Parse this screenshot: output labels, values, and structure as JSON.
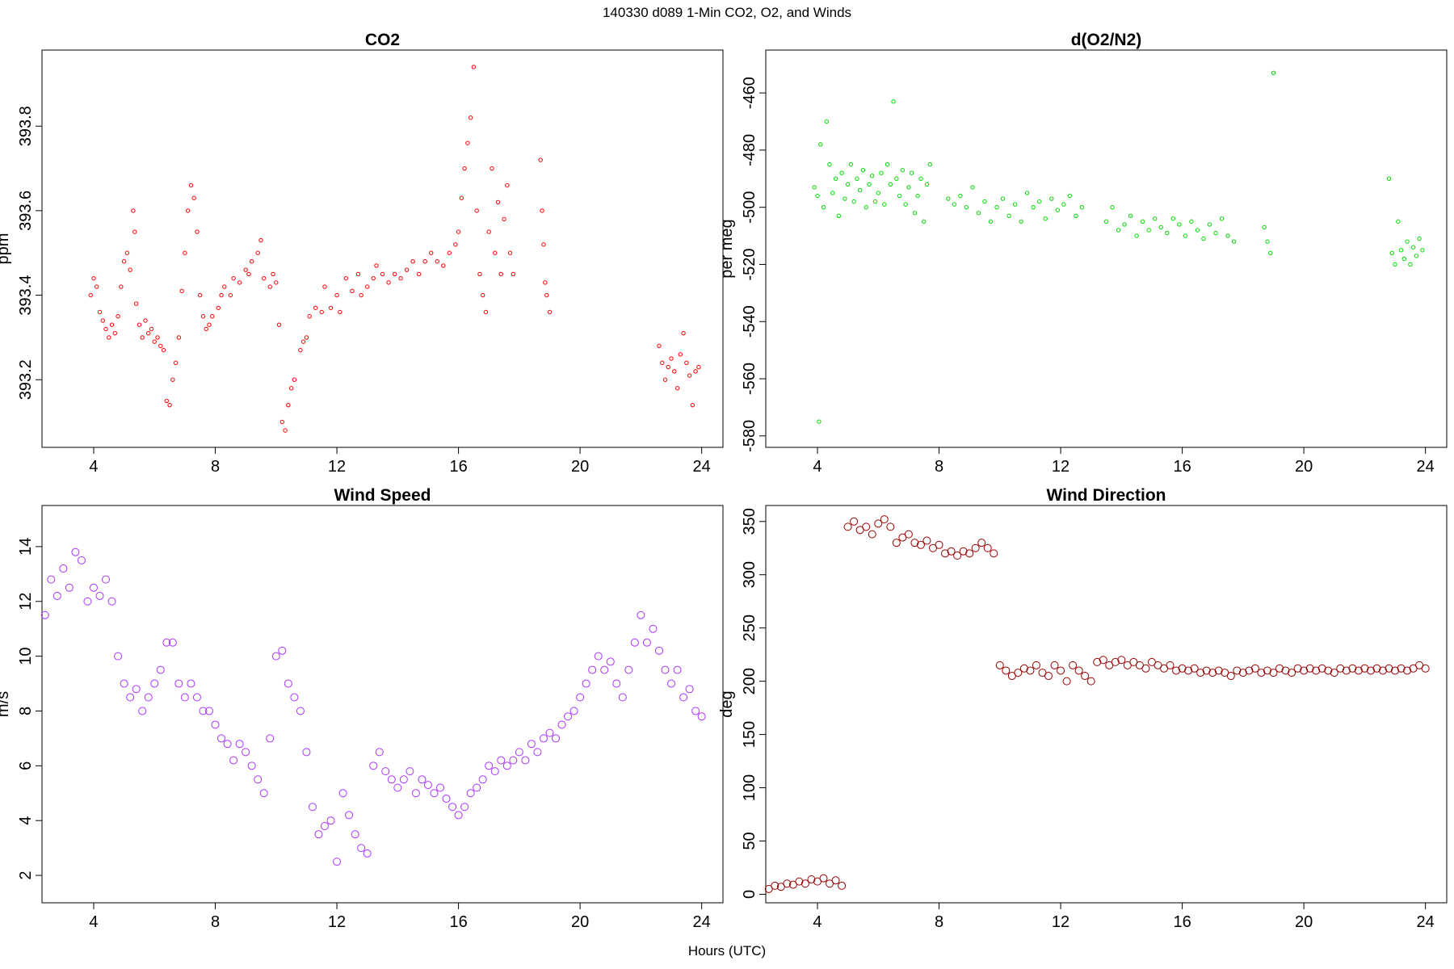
{
  "figure": {
    "title": "140330   d089   1-Min CO2, O2, and Winds",
    "xlabel": "Hours (UTC)"
  },
  "chart_data": [
    {
      "type": "scatter",
      "title": "CO2",
      "ylabel": "ppm",
      "xlim": [
        2.3,
        24.7
      ],
      "ylim": [
        393.04,
        393.98
      ],
      "xticks": [
        4,
        8,
        12,
        16,
        20,
        24
      ],
      "yticks": [
        393.2,
        393.4,
        393.6,
        393.8
      ],
      "color": "#ff0000",
      "series": [
        {
          "x": [
            3.9,
            4.0,
            4.1,
            4.2,
            4.3,
            4.4,
            4.5,
            4.6,
            4.7,
            4.8,
            4.9,
            5.0,
            5.1,
            5.2,
            5.3,
            5.35,
            5.4,
            5.5,
            5.6,
            5.7,
            5.8,
            5.9,
            6.0,
            6.1,
            6.2,
            6.3,
            6.4,
            6.5,
            6.6,
            6.7,
            6.8,
            6.9,
            7.0,
            7.1,
            7.2,
            7.3,
            7.4,
            7.5,
            7.6,
            7.7,
            7.8,
            7.9,
            8.1,
            8.2,
            8.3,
            8.5,
            8.6,
            8.8,
            9.0,
            9.1,
            9.2,
            9.4,
            9.5,
            9.6,
            9.8,
            9.9,
            10.0,
            10.1,
            10.2,
            10.3,
            10.4,
            10.5,
            10.6,
            10.8,
            10.9,
            11.0,
            11.1,
            11.3,
            11.5,
            11.6,
            11.8,
            12.0,
            12.1,
            12.3,
            12.5,
            12.7,
            12.8,
            13.0,
            13.2,
            13.3,
            13.5,
            13.7,
            13.9,
            14.1,
            14.3,
            14.5,
            14.7,
            14.9,
            15.1,
            15.3,
            15.5,
            15.7,
            15.9,
            16.0,
            16.1,
            16.2,
            16.3,
            16.4,
            16.5,
            16.6,
            16.7,
            16.8,
            16.9,
            17.0,
            17.1,
            17.2,
            17.3,
            17.4,
            17.5,
            17.6,
            17.7,
            17.8,
            18.7,
            18.75,
            18.8,
            18.85,
            18.9,
            19.0,
            22.6,
            22.7,
            22.8,
            22.9,
            23.0,
            23.1,
            23.2,
            23.3,
            23.4,
            23.5,
            23.6,
            23.7,
            23.8,
            23.9
          ],
          "y": [
            393.4,
            393.44,
            393.42,
            393.36,
            393.34,
            393.32,
            393.3,
            393.33,
            393.31,
            393.35,
            393.42,
            393.48,
            393.5,
            393.46,
            393.6,
            393.55,
            393.38,
            393.33,
            393.3,
            393.34,
            393.31,
            393.32,
            393.29,
            393.3,
            393.28,
            393.27,
            393.15,
            393.14,
            393.2,
            393.24,
            393.3,
            393.41,
            393.5,
            393.6,
            393.66,
            393.63,
            393.55,
            393.4,
            393.35,
            393.32,
            393.33,
            393.35,
            393.37,
            393.4,
            393.42,
            393.4,
            393.44,
            393.43,
            393.46,
            393.45,
            393.48,
            393.5,
            393.53,
            393.44,
            393.42,
            393.45,
            393.43,
            393.33,
            393.1,
            393.08,
            393.14,
            393.18,
            393.2,
            393.27,
            393.29,
            393.3,
            393.35,
            393.37,
            393.36,
            393.42,
            393.37,
            393.4,
            393.36,
            393.44,
            393.41,
            393.45,
            393.4,
            393.42,
            393.44,
            393.47,
            393.45,
            393.43,
            393.45,
            393.44,
            393.46,
            393.48,
            393.45,
            393.48,
            393.5,
            393.48,
            393.47,
            393.5,
            393.52,
            393.55,
            393.63,
            393.7,
            393.76,
            393.82,
            393.94,
            393.6,
            393.45,
            393.4,
            393.36,
            393.55,
            393.7,
            393.5,
            393.62,
            393.45,
            393.58,
            393.66,
            393.5,
            393.45,
            393.72,
            393.6,
            393.52,
            393.43,
            393.4,
            393.36,
            393.28,
            393.24,
            393.2,
            393.23,
            393.25,
            393.22,
            393.18,
            393.26,
            393.31,
            393.24,
            393.21,
            393.14,
            393.22,
            393.23
          ]
        }
      ]
    },
    {
      "type": "scatter",
      "title": "d(O2/N2)",
      "ylabel": "per meg",
      "xlim": [
        2.3,
        24.7
      ],
      "ylim": [
        -584,
        -445
      ],
      "xticks": [
        4,
        8,
        12,
        16,
        20,
        24
      ],
      "yticks": [
        -580,
        -560,
        -540,
        -520,
        -500,
        -480,
        -460
      ],
      "color": "#00dd00",
      "series": [
        {
          "x": [
            3.9,
            4.0,
            4.05,
            4.1,
            4.2,
            4.3,
            4.4,
            4.5,
            4.6,
            4.7,
            4.8,
            4.9,
            5.0,
            5.1,
            5.2,
            5.3,
            5.4,
            5.5,
            5.6,
            5.7,
            5.8,
            5.9,
            6.0,
            6.1,
            6.2,
            6.3,
            6.4,
            6.5,
            6.6,
            6.7,
            6.8,
            6.9,
            7.0,
            7.1,
            7.2,
            7.3,
            7.4,
            7.5,
            7.6,
            7.7,
            8.3,
            8.5,
            8.7,
            8.9,
            9.1,
            9.3,
            9.5,
            9.7,
            9.9,
            10.1,
            10.3,
            10.5,
            10.7,
            10.9,
            11.1,
            11.3,
            11.5,
            11.7,
            11.9,
            12.1,
            12.3,
            12.5,
            12.7,
            13.5,
            13.7,
            13.9,
            14.1,
            14.3,
            14.5,
            14.7,
            14.9,
            15.1,
            15.3,
            15.5,
            15.7,
            15.9,
            16.1,
            16.3,
            16.5,
            16.7,
            16.9,
            17.1,
            17.3,
            17.5,
            17.7,
            18.7,
            18.8,
            18.9,
            19.0,
            22.8,
            22.9,
            23.0,
            23.1,
            23.2,
            23.3,
            23.4,
            23.5,
            23.6,
            23.7,
            23.8,
            23.9
          ],
          "y": [
            -493,
            -496,
            -575,
            -478,
            -500,
            -470,
            -485,
            -495,
            -490,
            -503,
            -488,
            -497,
            -492,
            -485,
            -498,
            -490,
            -494,
            -487,
            -500,
            -492,
            -489,
            -498,
            -495,
            -488,
            -499,
            -485,
            -492,
            -463,
            -490,
            -496,
            -487,
            -499,
            -493,
            -488,
            -502,
            -496,
            -490,
            -505,
            -492,
            -485,
            -497,
            -499,
            -496,
            -500,
            -493,
            -502,
            -498,
            -505,
            -500,
            -497,
            -503,
            -499,
            -505,
            -495,
            -500,
            -498,
            -504,
            -497,
            -501,
            -499,
            -496,
            -503,
            -500,
            -505,
            -500,
            -508,
            -506,
            -503,
            -510,
            -505,
            -508,
            -504,
            -507,
            -509,
            -504,
            -506,
            -510,
            -505,
            -508,
            -511,
            -506,
            -509,
            -504,
            -510,
            -512,
            -507,
            -512,
            -516,
            -453,
            -490,
            -516,
            -520,
            -505,
            -515,
            -518,
            -512,
            -520,
            -514,
            -517,
            -511,
            -515
          ]
        }
      ]
    },
    {
      "type": "scatter",
      "title": "Wind Speed",
      "ylabel": "m/s",
      "xlim": [
        2.3,
        24.7
      ],
      "ylim": [
        1,
        15.5
      ],
      "xticks": [
        4,
        8,
        12,
        16,
        20,
        24
      ],
      "yticks": [
        2,
        4,
        6,
        8,
        10,
        12,
        14
      ],
      "color": "#aa33ff",
      "series": [
        {
          "x": [
            2.4,
            2.6,
            2.8,
            3.0,
            3.2,
            3.4,
            3.6,
            3.8,
            4.0,
            4.2,
            4.4,
            4.6,
            4.8,
            5.0,
            5.2,
            5.4,
            5.6,
            5.8,
            6.0,
            6.2,
            6.4,
            6.6,
            6.8,
            7.0,
            7.2,
            7.4,
            7.6,
            7.8,
            8.0,
            8.2,
            8.4,
            8.6,
            8.8,
            9.0,
            9.2,
            9.4,
            9.6,
            9.8,
            10.0,
            10.2,
            10.4,
            10.6,
            10.8,
            11.0,
            11.2,
            11.4,
            11.6,
            11.8,
            12.0,
            12.2,
            12.4,
            12.6,
            12.8,
            13.0,
            13.2,
            13.4,
            13.6,
            13.8,
            14.0,
            14.2,
            14.4,
            14.6,
            14.8,
            15.0,
            15.2,
            15.4,
            15.6,
            15.8,
            16.0,
            16.2,
            16.4,
            16.6,
            16.8,
            17.0,
            17.2,
            17.4,
            17.6,
            17.8,
            18.0,
            18.2,
            18.4,
            18.6,
            18.8,
            19.0,
            19.2,
            19.4,
            19.6,
            19.8,
            20.0,
            20.2,
            20.4,
            20.6,
            20.8,
            21.0,
            21.2,
            21.4,
            21.6,
            21.8,
            22.0,
            22.2,
            22.4,
            22.6,
            22.8,
            23.0,
            23.2,
            23.4,
            23.6,
            23.8,
            24.0
          ],
          "y": [
            11.5,
            12.8,
            12.2,
            13.2,
            12.5,
            13.8,
            13.5,
            12.0,
            12.5,
            12.2,
            12.8,
            12.0,
            10.0,
            9.0,
            8.5,
            8.8,
            8.0,
            8.5,
            9.0,
            9.5,
            10.5,
            10.5,
            9.0,
            8.5,
            9.0,
            8.5,
            8.0,
            8.0,
            7.5,
            7.0,
            6.8,
            6.2,
            6.8,
            6.5,
            6.0,
            5.5,
            5.0,
            7.0,
            10.0,
            10.2,
            9.0,
            8.5,
            8.0,
            6.5,
            4.5,
            3.5,
            3.8,
            4.0,
            2.5,
            5.0,
            4.2,
            3.5,
            3.0,
            2.8,
            6.0,
            6.5,
            5.8,
            5.5,
            5.2,
            5.5,
            5.8,
            5.0,
            5.5,
            5.3,
            5.0,
            5.2,
            4.8,
            4.5,
            4.2,
            4.5,
            5.0,
            5.2,
            5.5,
            6.0,
            5.8,
            6.2,
            6.0,
            6.2,
            6.5,
            6.2,
            6.8,
            6.5,
            7.0,
            7.2,
            7.0,
            7.5,
            7.8,
            8.0,
            8.5,
            9.0,
            9.5,
            10.0,
            9.5,
            9.8,
            9.0,
            8.5,
            9.5,
            10.5,
            11.5,
            10.5,
            11.0,
            10.2,
            9.5,
            9.0,
            9.5,
            8.5,
            8.8,
            8.0,
            7.8
          ]
        }
      ]
    },
    {
      "type": "scatter",
      "title": "Wind Direction",
      "ylabel": "deg",
      "xlim": [
        2.3,
        24.7
      ],
      "ylim": [
        -8,
        365
      ],
      "xticks": [
        4,
        8,
        12,
        16,
        20,
        24
      ],
      "yticks": [
        0,
        50,
        100,
        150,
        200,
        250,
        300,
        350
      ],
      "color": "#990000",
      "series": [
        {
          "x": [
            2.4,
            2.6,
            2.8,
            3.0,
            3.2,
            3.4,
            3.6,
            3.8,
            4.0,
            4.2,
            4.4,
            4.6,
            4.8,
            5.0,
            5.2,
            5.4,
            5.6,
            5.8,
            6.0,
            6.2,
            6.4,
            6.6,
            6.8,
            7.0,
            7.2,
            7.4,
            7.6,
            7.8,
            8.0,
            8.2,
            8.4,
            8.6,
            8.8,
            9.0,
            9.2,
            9.4,
            9.6,
            9.8,
            10.0,
            10.2,
            10.4,
            10.6,
            10.8,
            11.0,
            11.2,
            11.4,
            11.6,
            11.8,
            12.0,
            12.2,
            12.4,
            12.6,
            12.8,
            13.0,
            13.2,
            13.4,
            13.6,
            13.8,
            14.0,
            14.2,
            14.4,
            14.6,
            14.8,
            15.0,
            15.2,
            15.4,
            15.6,
            15.8,
            16.0,
            16.2,
            16.4,
            16.6,
            16.8,
            17.0,
            17.2,
            17.4,
            17.6,
            17.8,
            18.0,
            18.2,
            18.4,
            18.6,
            18.8,
            19.0,
            19.2,
            19.4,
            19.6,
            19.8,
            20.0,
            20.2,
            20.4,
            20.6,
            20.8,
            21.0,
            21.2,
            21.4,
            21.6,
            21.8,
            22.0,
            22.2,
            22.4,
            22.6,
            22.8,
            23.0,
            23.2,
            23.4,
            23.6,
            23.8,
            24.0
          ],
          "y": [
            5,
            8,
            7,
            10,
            9,
            12,
            10,
            14,
            12,
            15,
            10,
            13,
            8,
            345,
            350,
            342,
            345,
            338,
            348,
            352,
            345,
            330,
            335,
            338,
            330,
            328,
            332,
            325,
            328,
            320,
            322,
            318,
            322,
            320,
            325,
            330,
            325,
            320,
            215,
            210,
            205,
            208,
            212,
            210,
            215,
            208,
            205,
            215,
            210,
            200,
            215,
            210,
            205,
            200,
            218,
            220,
            215,
            218,
            220,
            215,
            218,
            215,
            212,
            218,
            215,
            212,
            215,
            210,
            212,
            210,
            212,
            208,
            210,
            208,
            210,
            208,
            205,
            210,
            208,
            210,
            212,
            208,
            210,
            208,
            212,
            210,
            208,
            212,
            210,
            212,
            210,
            212,
            210,
            208,
            212,
            210,
            212,
            210,
            212,
            210,
            212,
            210,
            212,
            210,
            212,
            210,
            212,
            215,
            212
          ]
        }
      ]
    }
  ]
}
